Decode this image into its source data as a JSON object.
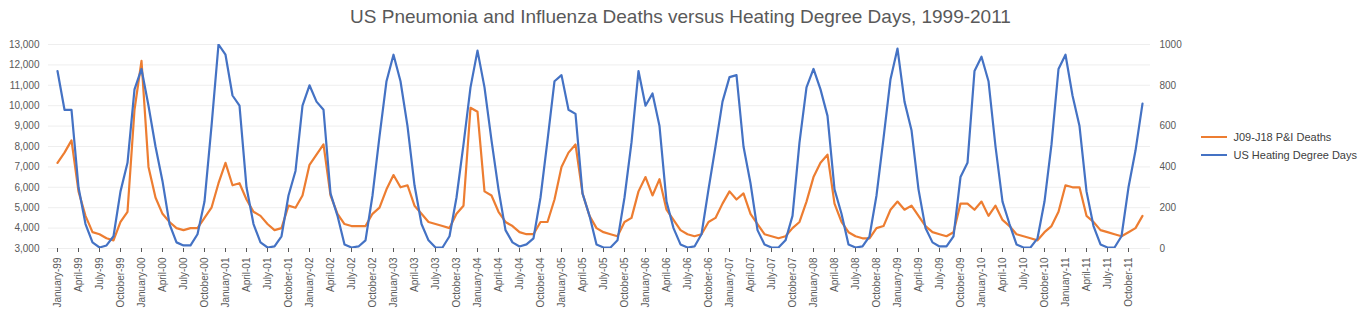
{
  "chart_data": {
    "type": "line",
    "title": "US Pneumonia and Influenza Deaths versus Heating Degree Days, 1999-2011",
    "categories": [
      "January-99",
      null,
      null,
      "April-99",
      null,
      null,
      "July-99",
      null,
      null,
      "October-99",
      null,
      null,
      "January-00",
      null,
      null,
      "April-00",
      null,
      null,
      "July-00",
      null,
      null,
      "October-00",
      null,
      null,
      "January-01",
      null,
      null,
      "April-01",
      null,
      null,
      "July-01",
      null,
      null,
      "October-01",
      null,
      null,
      "January-02",
      null,
      null,
      "April-02",
      null,
      null,
      "July-02",
      null,
      null,
      "October-02",
      null,
      null,
      "January-03",
      null,
      null,
      "April-03",
      null,
      null,
      "July-03",
      null,
      null,
      "October-03",
      null,
      null,
      "January-04",
      null,
      null,
      "April-04",
      null,
      null,
      "July-04",
      null,
      null,
      "October-04",
      null,
      null,
      "January-05",
      null,
      null,
      "April-05",
      null,
      null,
      "July-05",
      null,
      null,
      "October-05",
      null,
      null,
      "January-06",
      null,
      null,
      "April-06",
      null,
      null,
      "July-06",
      null,
      null,
      "October-06",
      null,
      null,
      "January-07",
      null,
      null,
      "April-07",
      null,
      null,
      "July-07",
      null,
      null,
      "October-07",
      null,
      null,
      "January-08",
      null,
      null,
      "April-08",
      null,
      null,
      "July-08",
      null,
      null,
      "October-08",
      null,
      null,
      "January-09",
      null,
      null,
      "April-09",
      null,
      null,
      "July-09",
      null,
      null,
      "October-09",
      null,
      null,
      "January-10",
      null,
      null,
      "April-10",
      null,
      null,
      "July-10",
      null,
      null,
      "October-10",
      null,
      null,
      "January-11",
      null,
      null,
      "April-11",
      null,
      null,
      "July-11",
      null,
      null,
      "October-11",
      null,
      null
    ],
    "series": [
      {
        "name": "J09-J18 P&I Deaths",
        "color": "#ed7d31",
        "axis": "y",
        "values": [
          7200,
          7700,
          8300,
          5800,
          4600,
          3800,
          3700,
          3500,
          3400,
          4300,
          4800,
          9800,
          12200,
          7000,
          5500,
          4700,
          4300,
          4000,
          3900,
          4000,
          4000,
          4500,
          5000,
          6200,
          7200,
          6100,
          6200,
          5400,
          4800,
          4600,
          4200,
          3900,
          4000,
          5100,
          5000,
          5600,
          7100,
          7600,
          8100,
          5600,
          4700,
          4200,
          4100,
          4100,
          4100,
          4700,
          5000,
          5900,
          6600,
          6000,
          6100,
          5100,
          4700,
          4300,
          4200,
          4100,
          4000,
          4700,
          5100,
          9900,
          9700,
          5800,
          5600,
          4800,
          4300,
          4100,
          3800,
          3700,
          3700,
          4300,
          4300,
          5400,
          7000,
          7700,
          8100,
          5700,
          4600,
          4000,
          3800,
          3700,
          3600,
          4300,
          4500,
          5800,
          6500,
          5600,
          6400,
          4900,
          4400,
          3900,
          3700,
          3600,
          3700,
          4300,
          4500,
          5200,
          5800,
          5400,
          5700,
          4700,
          4200,
          3700,
          3600,
          3500,
          3600,
          4000,
          4300,
          5300,
          6500,
          7200,
          7600,
          5200,
          4300,
          3800,
          3600,
          3500,
          3500,
          4000,
          4100,
          4900,
          5300,
          4900,
          5100,
          4600,
          4100,
          3800,
          3700,
          3600,
          3800,
          5200,
          5200,
          4900,
          5300,
          4600,
          5100,
          4400,
          4100,
          3700,
          3600,
          3500,
          3400,
          3800,
          4100,
          4800,
          6100,
          6000,
          6000,
          4600,
          4300,
          3900,
          3800,
          3700,
          3600,
          3800,
          4000,
          4600
        ]
      },
      {
        "name": "US Heating Degree Days",
        "color": "#4472c4",
        "axis": "y2",
        "values": [
          870,
          680,
          680,
          300,
          120,
          30,
          5,
          15,
          60,
          280,
          420,
          780,
          880,
          700,
          500,
          330,
          120,
          30,
          15,
          15,
          70,
          230,
          600,
          1000,
          950,
          750,
          700,
          300,
          120,
          30,
          5,
          10,
          60,
          260,
          380,
          700,
          800,
          720,
          680,
          270,
          160,
          20,
          5,
          10,
          40,
          260,
          550,
          820,
          950,
          820,
          600,
          310,
          120,
          40,
          5,
          5,
          60,
          250,
          510,
          790,
          970,
          790,
          530,
          290,
          90,
          30,
          10,
          20,
          50,
          250,
          530,
          820,
          850,
          680,
          660,
          270,
          160,
          20,
          5,
          5,
          40,
          250,
          520,
          870,
          700,
          760,
          600,
          230,
          100,
          20,
          5,
          10,
          70,
          290,
          500,
          720,
          840,
          850,
          500,
          320,
          90,
          20,
          5,
          5,
          40,
          160,
          520,
          790,
          880,
          780,
          650,
          290,
          170,
          20,
          5,
          10,
          60,
          260,
          540,
          830,
          980,
          720,
          580,
          290,
          100,
          30,
          10,
          10,
          60,
          350,
          420,
          870,
          940,
          820,
          500,
          230,
          120,
          20,
          5,
          5,
          50,
          230,
          510,
          880,
          950,
          750,
          600,
          280,
          110,
          20,
          5,
          5,
          60,
          300,
          480,
          710
        ]
      }
    ],
    "ylim": [
      3000,
      13000
    ],
    "yticks": [
      {
        "value": 3000,
        "label": "3,000"
      },
      {
        "value": 4000,
        "label": "4,000"
      },
      {
        "value": 5000,
        "label": "5,000"
      },
      {
        "value": 6000,
        "label": "6,000"
      },
      {
        "value": 7000,
        "label": "7,000"
      },
      {
        "value": 8000,
        "label": "8,000"
      },
      {
        "value": 9000,
        "label": "9,000"
      },
      {
        "value": 10000,
        "label": "10,000"
      },
      {
        "value": 11000,
        "label": "11,000"
      },
      {
        "value": 12000,
        "label": "12,000"
      },
      {
        "value": 13000,
        "label": "13,000"
      }
    ],
    "y2lim": [
      0,
      1000
    ],
    "y2ticks": [
      0,
      200,
      400,
      600,
      800,
      1000
    ],
    "grid": true,
    "legend": "right"
  }
}
